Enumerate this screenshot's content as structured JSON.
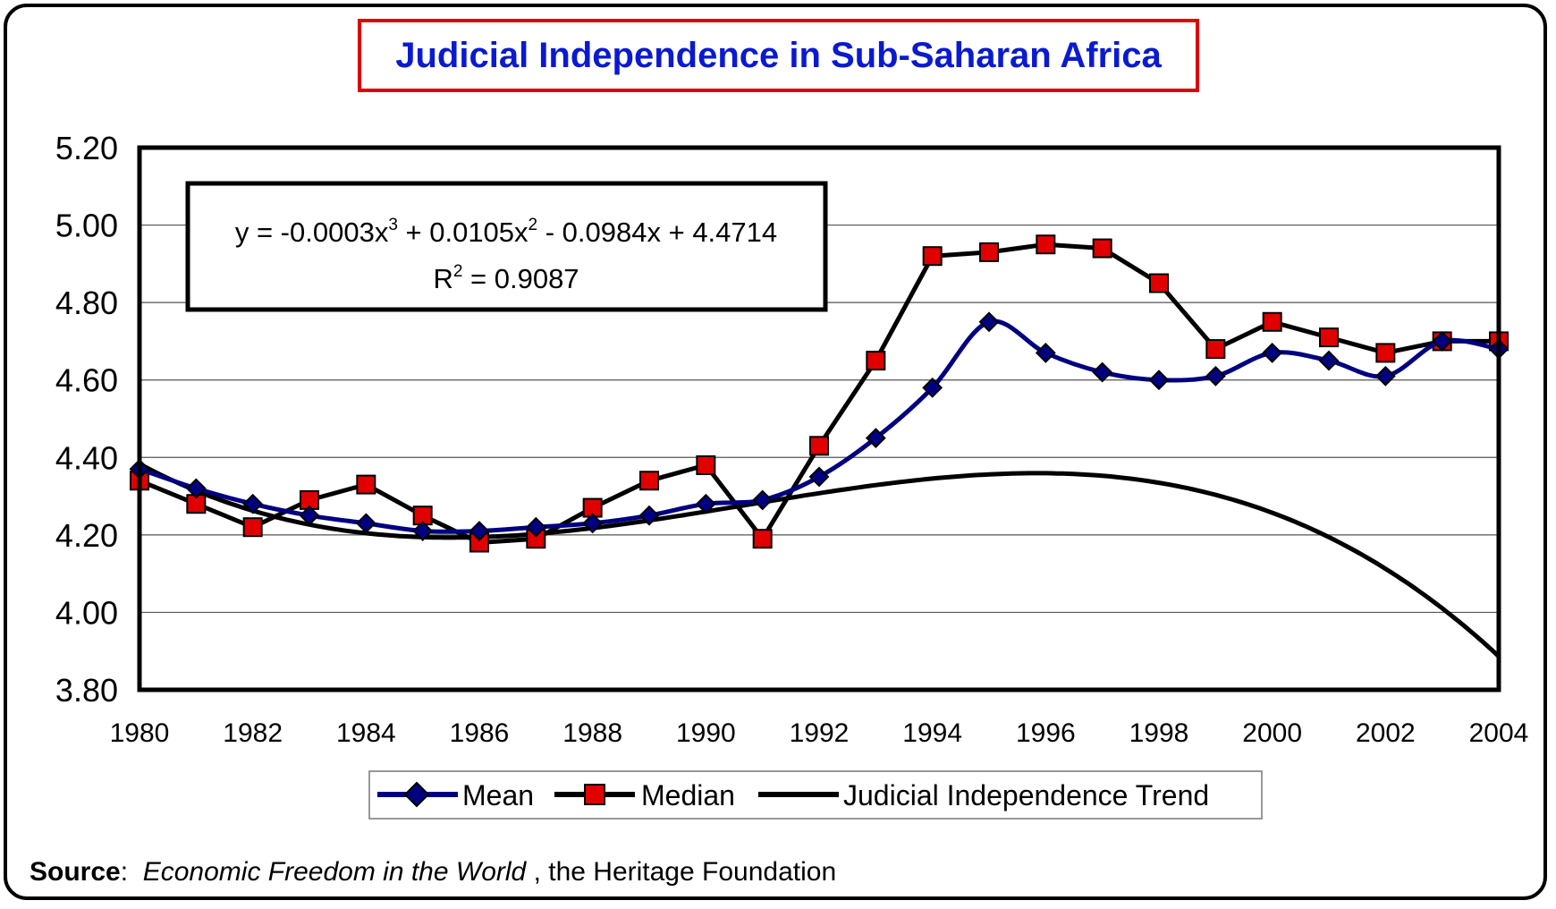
{
  "chart_data": {
    "type": "line",
    "title": "Judicial Independence in Sub-Saharan Africa",
    "x": [
      1980,
      1981,
      1982,
      1983,
      1984,
      1985,
      1986,
      1987,
      1988,
      1989,
      1990,
      1991,
      1992,
      1993,
      1994,
      1995,
      1996,
      1997,
      1998,
      1999,
      2000,
      2001,
      2002,
      2003,
      2004
    ],
    "x_ticks": [
      "1980",
      "1982",
      "1984",
      "1986",
      "1988",
      "1990",
      "1992",
      "1994",
      "1996",
      "1998",
      "2000",
      "2002",
      "2004"
    ],
    "y_ticks": [
      "5.20",
      "5.00",
      "4.80",
      "4.60",
      "4.40",
      "4.20",
      "4.00",
      "3.80"
    ],
    "ylim": [
      3.8,
      5.2
    ],
    "xlim": [
      1980,
      2004
    ],
    "grid": true,
    "legend_position": "bottom",
    "series": [
      {
        "name": "Mean",
        "color": "#000080",
        "marker": "diamond",
        "values": [
          4.37,
          4.32,
          4.28,
          4.25,
          4.23,
          4.21,
          4.21,
          4.22,
          4.23,
          4.25,
          4.28,
          4.29,
          4.35,
          4.45,
          4.58,
          4.75,
          4.67,
          4.62,
          4.6,
          4.61,
          4.67,
          4.65,
          4.61,
          4.7,
          4.68
        ]
      },
      {
        "name": "Median",
        "color": "#000000",
        "marker": "square",
        "marker_color": "#e00000",
        "values": [
          4.34,
          4.28,
          4.22,
          4.29,
          4.33,
          4.25,
          4.18,
          4.19,
          4.27,
          4.34,
          4.38,
          4.19,
          4.43,
          4.65,
          4.92,
          4.93,
          4.95,
          4.94,
          4.85,
          4.68,
          4.75,
          4.71,
          4.67,
          4.7,
          4.7
        ]
      },
      {
        "name": "Judicial Independence Trend",
        "color": "#000000",
        "marker": "none",
        "equation": {
          "a3": -0.0003,
          "a2": 0.0105,
          "a1": -0.0984,
          "a0": 4.4714
        }
      }
    ],
    "equation_label": {
      "line1_prefix": "y = -0.0003x",
      "line1_exp1": "3",
      "line1_mid": " + 0.0105x",
      "line1_exp2": "2",
      "line1_suffix": " - 0.0984x + 4.4714",
      "line2_prefix": "R",
      "line2_exp": "2",
      "line2_suffix": " = 0.9087"
    }
  },
  "source": {
    "label": "Source",
    "colon": ":",
    "publication": "Economic Freedom in the World",
    "rest": " , the Heritage Foundation"
  }
}
